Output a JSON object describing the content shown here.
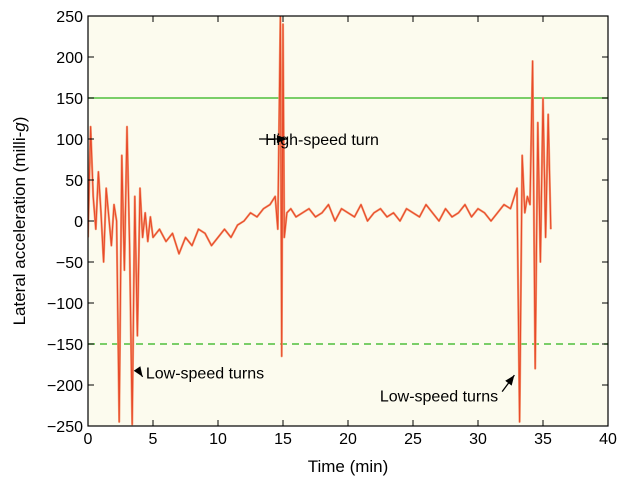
{
  "chart_data": {
    "type": "line",
    "title": "",
    "xlabel": "Time (min)",
    "ylabel_main": "Lateral acceleration (milli-",
    "ylabel_italic": "g",
    "ylabel_end": ")",
    "xlim": [
      0,
      40
    ],
    "ylim": [
      -250,
      250
    ],
    "xticks": [
      0,
      5,
      10,
      15,
      20,
      25,
      30,
      35,
      40
    ],
    "yticks": [
      250,
      200,
      150,
      100,
      50,
      0,
      -50,
      -100,
      -150,
      -200,
      -250
    ],
    "grid": false,
    "legend": "none",
    "colors": {
      "plot_background": "#fcfbee",
      "signal": "#e84a2a",
      "signal_light": "#f4a07a",
      "threshold": "#4fbf3c"
    },
    "thresholds": [
      {
        "y": 150,
        "style": "solid"
      },
      {
        "y": -150,
        "style": "dashed"
      }
    ],
    "series": [
      {
        "x": [
          0,
          0.2,
          0.4,
          0.6,
          0.8,
          1.0,
          1.2,
          1.4,
          1.6,
          1.8,
          2.0,
          2.2,
          2.4,
          2.6,
          2.8,
          3.0,
          3.2,
          3.4,
          3.6,
          3.8,
          4.0,
          4.2,
          4.4,
          4.6,
          4.8,
          5.0,
          5.5,
          6.0,
          6.5,
          7.0,
          7.5,
          8.0,
          8.5,
          9.0,
          9.5,
          10.0,
          10.5,
          11.0,
          11.5,
          12.0,
          12.5,
          13.0,
          13.5,
          14.0,
          14.4,
          14.6,
          14.8,
          14.9,
          15.0,
          15.1,
          15.3,
          15.6,
          16.0,
          16.5,
          17.0,
          17.5,
          18.0,
          18.5,
          19.0,
          19.5,
          20.0,
          20.5,
          21.0,
          21.5,
          22.0,
          22.5,
          23.0,
          23.5,
          24.0,
          24.5,
          25.0,
          25.5,
          26.0,
          26.5,
          27.0,
          27.5,
          28.0,
          28.5,
          29.0,
          29.5,
          30.0,
          30.5,
          31.0,
          31.5,
          32.0,
          32.5,
          33.0,
          33.2,
          33.4,
          33.6,
          33.8,
          34.0,
          34.2,
          34.4,
          34.6,
          34.8,
          35.0,
          35.2,
          35.4,
          35.6
        ],
        "y": [
          -20,
          115,
          30,
          -10,
          60,
          10,
          -50,
          40,
          5,
          -30,
          20,
          0,
          -245,
          80,
          -60,
          115,
          -30,
          -248,
          30,
          -140,
          40,
          -20,
          10,
          -25,
          5,
          -20,
          -10,
          -25,
          -15,
          -40,
          -20,
          -30,
          -10,
          -15,
          -30,
          -20,
          -10,
          -20,
          -5,
          0,
          10,
          5,
          15,
          20,
          30,
          -10,
          250,
          -165,
          240,
          -20,
          10,
          15,
          5,
          10,
          15,
          5,
          10,
          20,
          0,
          15,
          10,
          5,
          20,
          0,
          10,
          15,
          5,
          10,
          0,
          15,
          10,
          5,
          20,
          10,
          0,
          15,
          5,
          10,
          20,
          5,
          15,
          10,
          0,
          10,
          20,
          15,
          40,
          -245,
          80,
          10,
          30,
          20,
          195,
          -180,
          120,
          -50,
          150,
          -20,
          130,
          -10
        ]
      }
    ],
    "annotations": [
      {
        "text": "High-speed turn",
        "x": 18,
        "y": 100,
        "arrow_to": [
          15.3,
          100
        ]
      },
      {
        "text": "Low-speed turns",
        "x": 9,
        "y": -185,
        "arrow_to": [
          4.2,
          -190
        ]
      },
      {
        "text": "Low-speed turns",
        "x": 27,
        "y": -213,
        "arrow_to": [
          32.8,
          -188
        ]
      }
    ]
  }
}
